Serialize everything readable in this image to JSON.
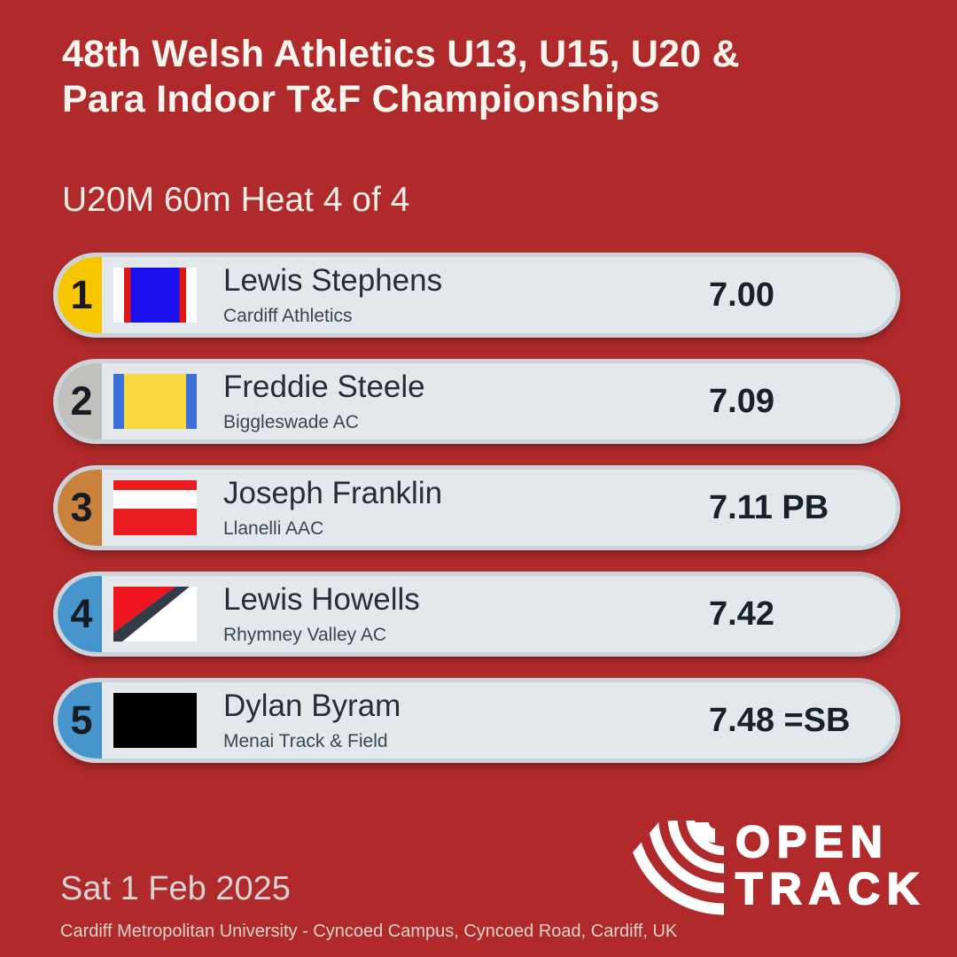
{
  "header": {
    "title_lines": [
      "48th Welsh Athletics U13, U15, U20 &",
      "Para Indoor T&F Championships"
    ],
    "title_full": "48th Welsh Athletics U13, U15, U20 & Para Indoor T&F Championships",
    "event": "U20M 60m Heat 4 of 4"
  },
  "results": {
    "rows": [
      {
        "position": "1",
        "name": "Lewis Stephens",
        "club": "Cardiff Athletics",
        "mark": "7.00",
        "badge_color": "#F7C600",
        "vest": {
          "type": "stripes-vertical",
          "stripes": [
            {
              "color": "#FFFFFF",
              "size": 13
            },
            {
              "color": "#E01515",
              "size": 8
            },
            {
              "color": "#1A10EE",
              "size": 58
            },
            {
              "color": "#E01515",
              "size": 8
            },
            {
              "color": "#FFFFFF",
              "size": 13
            }
          ]
        }
      },
      {
        "position": "2",
        "name": "Freddie Steele",
        "club": "Biggleswade AC",
        "mark": "7.09",
        "badge_color": "#C2C0BC",
        "vest": {
          "type": "stripes-vertical",
          "stripes": [
            {
              "color": "#3C6FD8",
              "size": 13
            },
            {
              "color": "#F9D93E",
              "size": 74
            },
            {
              "color": "#3C6FD8",
              "size": 13
            }
          ]
        }
      },
      {
        "position": "3",
        "name": "Joseph Franklin",
        "club": "Llanelli AAC",
        "mark": "7.11 PB",
        "badge_color": "#C8823C",
        "vest": {
          "type": "stripes-horizontal",
          "stripes": [
            {
              "color": "#EB1B22",
              "size": 18
            },
            {
              "color": "#FFFFFF",
              "size": 34
            },
            {
              "color": "#EB1B22",
              "size": 48
            }
          ]
        }
      },
      {
        "position": "4",
        "name": "Lewis Howells",
        "club": "Rhymney Valley AC",
        "mark": "7.42",
        "badge_color": "#4695CC",
        "vest": {
          "type": "diagonal",
          "background": "#FFFFFF",
          "upper": "#F01420",
          "band": "#343B48"
        }
      },
      {
        "position": "5",
        "name": "Dylan Byram",
        "club": "Menai Track & Field",
        "mark": "7.48 =SB",
        "badge_color": "#4695CC",
        "vest": {
          "type": "solid",
          "color": "#000000"
        }
      }
    ]
  },
  "footer": {
    "date": "Sat 1 Feb 2025",
    "venue": "Cardiff Metropolitan University - Cyncoed Campus, Cyncoed Road, Cardiff, UK"
  },
  "logo": {
    "open": "OPEN",
    "track": "TRACK",
    "mark_icon": "track-bend-arcs"
  },
  "colors": {
    "background": "#B02A2B",
    "card_fill": "#E3E8EC",
    "card_border": "#C9D3DA",
    "name_text": "#262C39",
    "club_text": "#3C4452",
    "time_text": "#1A202B",
    "gold": "#F7C600",
    "silver": "#C2C0BC",
    "bronze": "#C8823C",
    "lane_blue": "#4695CC",
    "logo_white": "#FFFFFF"
  }
}
